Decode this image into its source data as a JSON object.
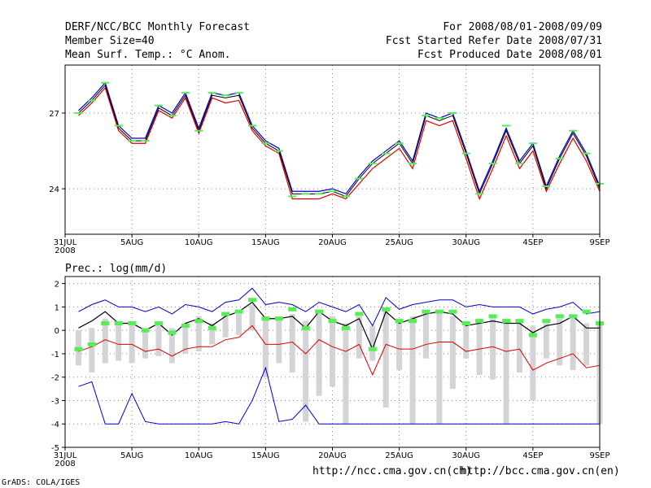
{
  "header": {
    "title": "DERF/NCC/BCC Monthly Forecast",
    "member_size": "Member Size=40",
    "variable": "Mean Surf. Temp.: °C Anom.",
    "period": "For 2008/08/01-2008/09/09",
    "started": "Fcst Started Refer Date 2008/07/31",
    "produced": "Fcst Produced Date 2008/08/01"
  },
  "footer": {
    "grads": "GrADS: COLA/IGES",
    "url_ncc": "http://ncc.cma.gov.cn(ch)",
    "url_bcc": "http://bcc.cma.gov.cn(en)"
  },
  "colors": {
    "mean": "#000000",
    "upper": "#0000cc",
    "lower": "#dd0000",
    "marker": "#55ee55",
    "bar": "#d3d3d8",
    "grid": "#888888"
  },
  "chart_data": [
    {
      "type": "line",
      "title": "Mean Surf. Temp.",
      "x_year": "2008",
      "x_tick_labels": [
        "31JUL",
        "5AUG",
        "10AUG",
        "15AUG",
        "20AUG",
        "25AUG",
        "30AUG",
        "4SEP",
        "9SEP"
      ],
      "x_tick_days": [
        0,
        5,
        10,
        15,
        20,
        25,
        30,
        35,
        40
      ],
      "ylim": [
        22.2,
        28.9
      ],
      "y_ticks": [
        24,
        27
      ],
      "days": [
        1,
        2,
        3,
        4,
        5,
        6,
        7,
        8,
        9,
        10,
        11,
        12,
        13,
        14,
        15,
        16,
        17,
        18,
        19,
        20,
        21,
        22,
        23,
        24,
        25,
        26,
        27,
        28,
        29,
        30,
        31,
        32,
        33,
        34,
        35,
        36,
        37,
        38,
        39,
        40
      ],
      "series": [
        {
          "name": "mean",
          "values": [
            27.0,
            27.5,
            28.1,
            26.4,
            25.9,
            25.9,
            27.2,
            26.9,
            27.7,
            26.3,
            27.7,
            27.6,
            27.7,
            26.4,
            25.8,
            25.5,
            23.8,
            23.8,
            23.8,
            23.9,
            23.7,
            24.4,
            25.0,
            25.4,
            25.8,
            25.0,
            26.9,
            26.7,
            26.9,
            25.4,
            23.8,
            25.0,
            26.3,
            25.0,
            25.7,
            24.0,
            25.2,
            26.2,
            25.3,
            24.0
          ]
        },
        {
          "name": "upper",
          "values": [
            27.1,
            27.6,
            28.2,
            26.5,
            26.0,
            26.0,
            27.3,
            27.0,
            27.8,
            26.4,
            27.8,
            27.7,
            27.8,
            26.5,
            25.9,
            25.6,
            23.9,
            23.9,
            23.9,
            24.0,
            23.8,
            24.5,
            25.1,
            25.5,
            25.9,
            25.1,
            27.0,
            26.8,
            27.0,
            25.5,
            23.9,
            25.1,
            26.4,
            25.1,
            25.8,
            24.1,
            25.3,
            26.3,
            25.4,
            24.1
          ]
        },
        {
          "name": "lower",
          "values": [
            26.9,
            27.4,
            28.0,
            26.3,
            25.8,
            25.8,
            27.1,
            26.8,
            27.6,
            26.2,
            27.6,
            27.4,
            27.5,
            26.3,
            25.7,
            25.4,
            23.6,
            23.6,
            23.6,
            23.8,
            23.6,
            24.2,
            24.8,
            25.2,
            25.6,
            24.8,
            26.7,
            26.5,
            26.7,
            25.2,
            23.6,
            24.8,
            26.1,
            24.8,
            25.5,
            23.9,
            25.0,
            26.0,
            25.1,
            23.9
          ]
        },
        {
          "name": "observed",
          "values": [
            27.0,
            27.5,
            28.2,
            26.5,
            25.9,
            25.9,
            27.3,
            26.9,
            27.8,
            26.3,
            27.8,
            27.7,
            27.8,
            26.5,
            25.8,
            25.5,
            23.7,
            23.8,
            23.8,
            23.9,
            23.7,
            24.4,
            25.0,
            25.4,
            25.8,
            25.0,
            26.9,
            26.8,
            27.0,
            25.4,
            23.8,
            25.0,
            26.5,
            25.0,
            25.8,
            24.1,
            25.2,
            26.3,
            25.4,
            24.2
          ]
        }
      ]
    },
    {
      "type": "line",
      "title": "Prec.: log(mm/d)",
      "x_year": "2008",
      "x_tick_labels": [
        "31JUL",
        "5AUG",
        "10AUG",
        "15AUG",
        "20AUG",
        "25AUG",
        "30AUG",
        "4SEP",
        "9SEP"
      ],
      "x_tick_days": [
        0,
        5,
        10,
        15,
        20,
        25,
        30,
        35,
        40
      ],
      "ylim": [
        -5,
        2.3
      ],
      "y_ticks": [
        -5,
        -4,
        -3,
        -2,
        -1,
        0,
        1,
        2
      ],
      "days": [
        1,
        2,
        3,
        4,
        5,
        6,
        7,
        8,
        9,
        10,
        11,
        12,
        13,
        14,
        15,
        16,
        17,
        18,
        19,
        20,
        21,
        22,
        23,
        24,
        25,
        26,
        27,
        28,
        29,
        30,
        31,
        32,
        33,
        34,
        35,
        36,
        37,
        38,
        39,
        40
      ],
      "series": [
        {
          "name": "mean",
          "values": [
            0.1,
            0.4,
            0.8,
            0.3,
            0.3,
            0.0,
            0.3,
            -0.2,
            0.3,
            0.5,
            0.2,
            0.6,
            0.8,
            1.2,
            0.5,
            0.5,
            0.6,
            0.1,
            0.8,
            0.4,
            0.2,
            0.5,
            -0.8,
            0.8,
            0.3,
            0.5,
            0.7,
            0.8,
            0.7,
            0.2,
            0.3,
            0.4,
            0.3,
            0.3,
            -0.1,
            0.2,
            0.3,
            0.6,
            0.1,
            0.1
          ]
        },
        {
          "name": "max",
          "values": [
            0.8,
            1.1,
            1.3,
            1.0,
            1.0,
            0.8,
            1.0,
            0.7,
            1.1,
            1.0,
            0.8,
            1.2,
            1.3,
            1.8,
            1.1,
            1.2,
            1.1,
            0.8,
            1.2,
            1.0,
            0.8,
            1.1,
            0.2,
            1.4,
            0.9,
            1.1,
            1.2,
            1.3,
            1.3,
            1.0,
            1.1,
            1.0,
            1.0,
            1.0,
            0.7,
            0.9,
            1.0,
            1.2,
            0.7,
            0.8
          ]
        },
        {
          "name": "min_member",
          "values": [
            -2.4,
            -2.2,
            -4.0,
            -4.0,
            -2.7,
            -3.9,
            -4.0,
            -4.0,
            -4.0,
            -4.0,
            -4.0,
            -3.9,
            -4.0,
            -3.0,
            -1.6,
            -3.9,
            -3.8,
            -3.2,
            -4.0,
            -4.0,
            -4.0,
            -4.0,
            -4.0,
            -4.0,
            -4.0,
            -4.0,
            -4.0,
            -4.0,
            -4.0,
            -4.0,
            -4.0,
            -4.0,
            -4.0,
            -4.0,
            -4.0,
            -4.0,
            -4.0,
            -4.0,
            -4.0,
            -4.0
          ]
        },
        {
          "name": "low",
          "values": [
            -0.9,
            -0.7,
            -0.4,
            -0.6,
            -0.6,
            -0.9,
            -0.8,
            -1.1,
            -0.8,
            -0.7,
            -0.7,
            -0.4,
            -0.3,
            0.2,
            -0.6,
            -0.6,
            -0.5,
            -1.0,
            -0.4,
            -0.7,
            -0.9,
            -0.6,
            -1.9,
            -0.6,
            -0.8,
            -0.8,
            -0.6,
            -0.5,
            -0.5,
            -0.9,
            -0.8,
            -0.7,
            -0.9,
            -0.8,
            -1.7,
            -1.4,
            -1.2,
            -1.0,
            -1.6,
            -1.5
          ]
        },
        {
          "name": "observed",
          "values": [
            -0.8,
            -0.6,
            0.3,
            0.3,
            0.3,
            0.0,
            0.3,
            -0.1,
            0.2,
            0.4,
            0.1,
            0.7,
            0.8,
            1.3,
            0.5,
            0.5,
            0.9,
            0.1,
            0.8,
            0.4,
            0.1,
            0.7,
            -0.8,
            0.9,
            0.4,
            0.4,
            0.8,
            0.8,
            0.8,
            0.3,
            0.4,
            0.6,
            0.4,
            0.4,
            -0.2,
            0.4,
            0.6,
            0.6,
            0.8,
            0.3
          ]
        },
        {
          "name": "box_top",
          "values": [
            0.0,
            0.1,
            0.5,
            0.3,
            0.3,
            0.1,
            0.3,
            0.1,
            0.3,
            0.6,
            0.3,
            0.6,
            0.7,
            1.1,
            0.6,
            0.6,
            0.7,
            0.4,
            0.7,
            0.6,
            0.3,
            0.6,
            0.2,
            0.9,
            0.5,
            0.6,
            0.7,
            0.8,
            0.6,
            0.4,
            0.5,
            0.5,
            0.5,
            0.4,
            0.2,
            0.3,
            0.5,
            0.6,
            0.3,
            0.3
          ]
        },
        {
          "name": "box_bottom",
          "values": [
            -1.5,
            -1.8,
            -1.4,
            -1.3,
            -1.4,
            -1.2,
            -1.1,
            -1.4,
            -1.0,
            -0.9,
            -0.6,
            -0.3,
            -0.2,
            0.0,
            -2.0,
            -1.4,
            -1.8,
            -3.9,
            -2.8,
            -2.4,
            -4.0,
            -1.2,
            -1.3,
            -3.3,
            -1.7,
            -4.0,
            -1.2,
            -4.0,
            -2.5,
            -1.2,
            -1.9,
            -2.1,
            -4.0,
            -1.8,
            -3.0,
            -1.2,
            -1.5,
            -1.7,
            -1.5,
            -4.0
          ]
        }
      ]
    }
  ]
}
